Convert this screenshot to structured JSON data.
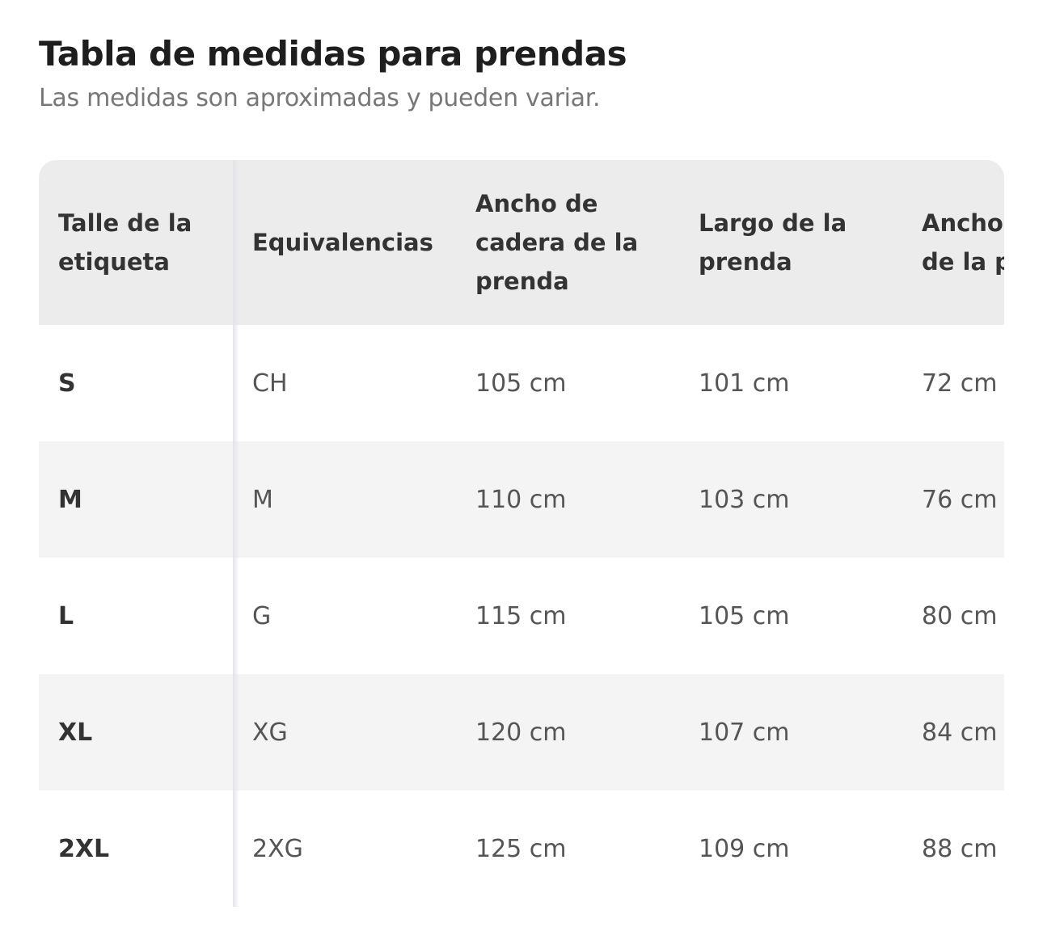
{
  "title": "Tabla de medidas para prendas",
  "subtitle": "Las medidas son aproximadas y pueden variar.",
  "table": {
    "headers": [
      "Talle de la etiqueta",
      "Equivalencias",
      "Ancho de cadera de la prenda",
      "Largo de la prenda",
      "Ancho de cintura de la prenda"
    ],
    "rows": [
      [
        "S",
        "CH",
        "105 cm",
        "101 cm",
        "72 cm"
      ],
      [
        "M",
        "M",
        "110 cm",
        "103 cm",
        "76 cm"
      ],
      [
        "L",
        "G",
        "115 cm",
        "105 cm",
        "80 cm"
      ],
      [
        "XL",
        "XG",
        "120 cm",
        "107 cm",
        "84 cm"
      ],
      [
        "2XL",
        "2XG",
        "125 cm",
        "109 cm",
        "88 cm"
      ]
    ]
  }
}
